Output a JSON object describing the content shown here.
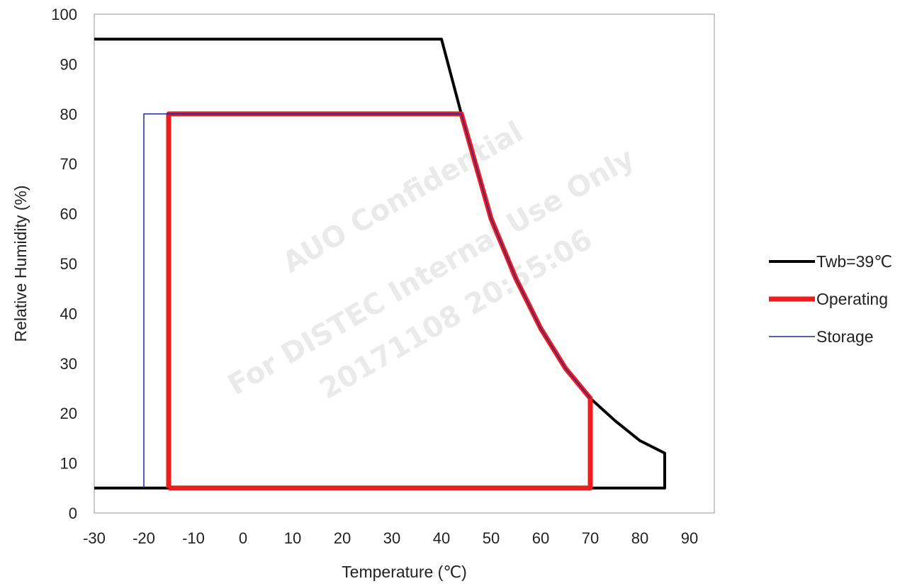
{
  "chart_data": {
    "type": "line",
    "title": "",
    "xlabel": "Temperature (℃)",
    "ylabel": "Relative Humidity (%)",
    "xlim": [
      -30,
      95
    ],
    "ylim": [
      0,
      100
    ],
    "xticks": [
      -30,
      -20,
      -10,
      0,
      10,
      20,
      30,
      40,
      50,
      60,
      70,
      80,
      90
    ],
    "yticks": [
      0,
      10,
      20,
      30,
      40,
      50,
      60,
      70,
      80,
      90,
      100
    ],
    "grid": false,
    "legend_position": "right",
    "series": [
      {
        "name": "Twb=39℃",
        "color": "#000000",
        "points": [
          [
            -30,
            95
          ],
          [
            40,
            95
          ],
          [
            44,
            80
          ],
          [
            50,
            59
          ],
          [
            55,
            47
          ],
          [
            60,
            37
          ],
          [
            65,
            29
          ],
          [
            70,
            23
          ],
          [
            75,
            18.5
          ],
          [
            80,
            14.5
          ],
          [
            85,
            12
          ],
          [
            85,
            5
          ],
          [
            -30,
            5
          ]
        ]
      },
      {
        "name": "Operating",
        "color": "#ee1c1c",
        "points": [
          [
            -15,
            5
          ],
          [
            -15,
            80
          ],
          [
            44,
            80
          ],
          [
            50,
            59
          ],
          [
            55,
            47
          ],
          [
            60,
            37
          ],
          [
            65,
            29
          ],
          [
            70,
            23
          ],
          [
            70,
            5
          ],
          [
            -15,
            5
          ]
        ]
      },
      {
        "name": "Storage",
        "color": "#1f2a9c",
        "points": [
          [
            -20,
            5
          ],
          [
            -20,
            80
          ],
          [
            44,
            80
          ],
          [
            50,
            59
          ],
          [
            55,
            47
          ],
          [
            60,
            37
          ],
          [
            65,
            29
          ],
          [
            70,
            23
          ]
        ]
      }
    ],
    "watermarks": [
      "AUO Confidential",
      "For DISTEC Internal Use Only",
      "20171108 20:55:06"
    ]
  }
}
